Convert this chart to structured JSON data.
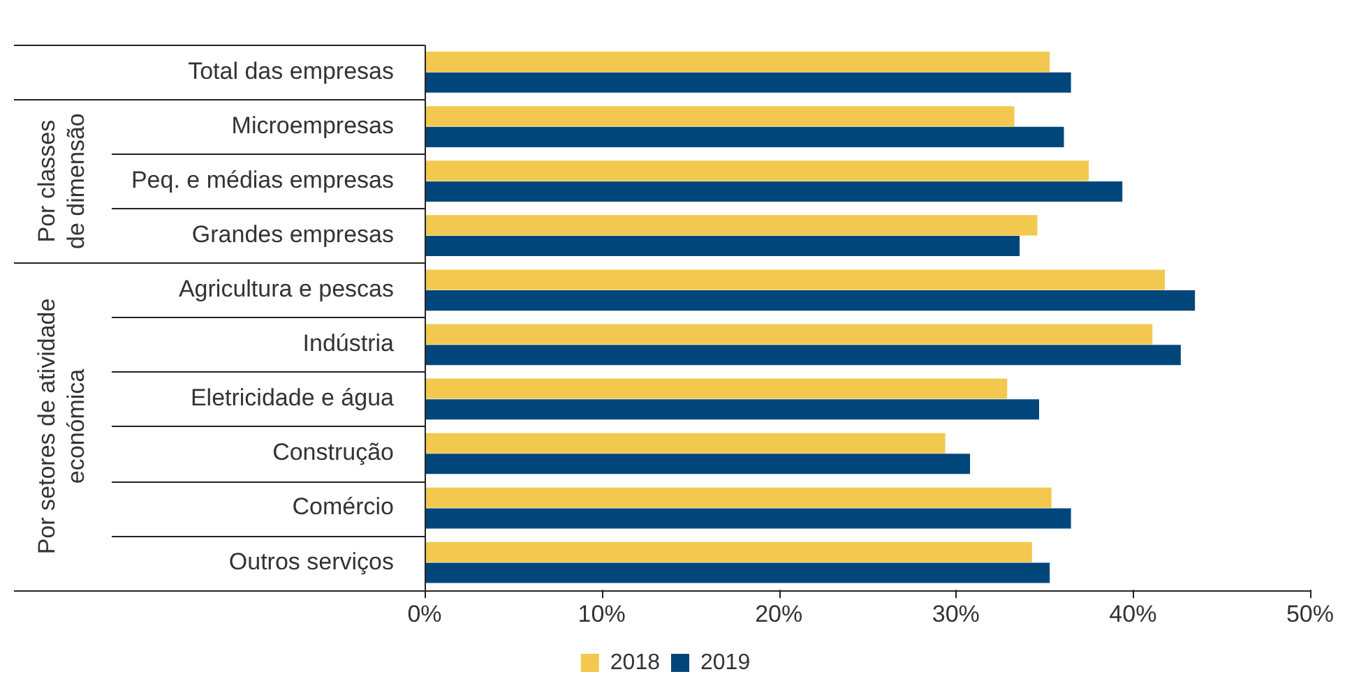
{
  "chart_data": {
    "type": "bar",
    "orientation": "horizontal",
    "categories": [
      "Total das empresas",
      "Microempresas",
      "Peq. e médias empresas",
      "Grandes empresas",
      "Agricultura e pescas",
      "Indústria",
      "Eletricidade e água",
      "Construção",
      "Comércio",
      "Outros serviços"
    ],
    "series": [
      {
        "name": "2018",
        "color": "#f2c84f",
        "values": [
          35.3,
          33.3,
          37.5,
          34.6,
          41.8,
          41.1,
          32.9,
          29.4,
          35.4,
          34.3
        ]
      },
      {
        "name": "2019",
        "color": "#00467a",
        "values": [
          36.5,
          36.1,
          39.4,
          33.6,
          43.5,
          42.7,
          34.7,
          30.8,
          36.5,
          35.3
        ]
      }
    ],
    "xlim": [
      0,
      50
    ],
    "xticks": [
      {
        "value": 0,
        "label": "0%"
      },
      {
        "value": 10,
        "label": "10%"
      },
      {
        "value": 20,
        "label": "20%"
      },
      {
        "value": 30,
        "label": "30%"
      },
      {
        "value": 40,
        "label": "40%"
      },
      {
        "value": 50,
        "label": "50%"
      }
    ],
    "annotations": [
      "Por classes de dimensão",
      "Por setores de atividade económica"
    ],
    "legend": "bottom"
  }
}
